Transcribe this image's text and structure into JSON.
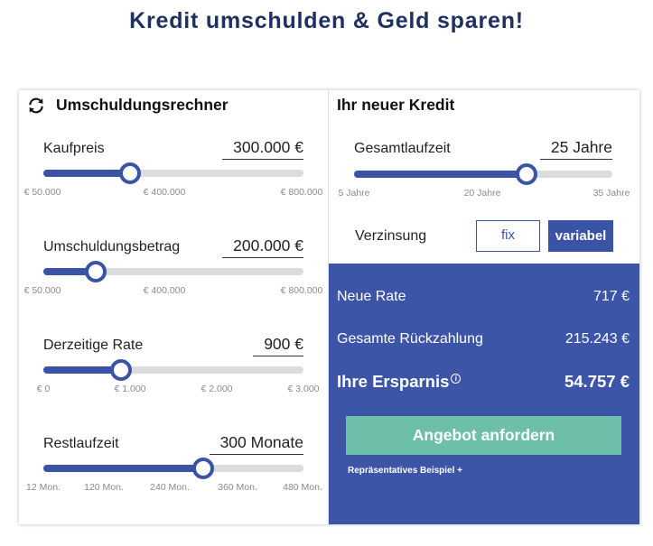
{
  "page": {
    "title": "Kredit umschulden & Geld sparen!"
  },
  "left_panel": {
    "title": "Umschuldungsrechner",
    "icon": "refresh-icon",
    "sliders": [
      {
        "id": "kaufpreis",
        "label": "Kaufpreis",
        "value": "300.000 €",
        "fraction": 0.333,
        "ticks": [
          "€ 50.000",
          "€ 400.000",
          "€ 800.000"
        ]
      },
      {
        "id": "umschuldungsbetrag",
        "label": "Umschuldungsbetrag",
        "value": "200.000 €",
        "fraction": 0.2,
        "ticks": [
          "€ 50.000",
          "€ 400.000",
          "€ 800.000"
        ]
      },
      {
        "id": "derzeitige-rate",
        "label": "Derzeitige Rate",
        "value": "900 €",
        "fraction": 0.3,
        "ticks": [
          "€ 0",
          "€ 1.000",
          "€ 2.000",
          "€ 3.000"
        ]
      },
      {
        "id": "restlaufzeit",
        "label": "Restlaufzeit",
        "value": "300 Monate",
        "fraction": 0.613,
        "ticks": [
          "12 Mon.",
          "120 Mon.",
          "240 Mon.",
          "360 Mon.",
          "480 Mon."
        ]
      }
    ]
  },
  "right_panel": {
    "title": "Ihr neuer Kredit",
    "slider": {
      "id": "gesamtlaufzeit",
      "label": "Gesamtlaufzeit",
      "value": "25 Jahre",
      "fraction": 0.667,
      "ticks": [
        "5 Jahre",
        "20 Jahre",
        "35 Jahre"
      ]
    },
    "verzinsung": {
      "label": "Verzinsung",
      "fix_label": "fix",
      "variabel_label": "variabel",
      "selected": "variabel"
    },
    "results": {
      "neue_rate_label": "Neue Rate",
      "neue_rate_value": "717 €",
      "rueckzahlung_label": "Gesamte Rückzahlung",
      "rueckzahlung_value": "215.243 €",
      "ersparnis_label": "Ihre Ersparnis",
      "ersparnis_value": "54.757 €",
      "info_icon": "info-icon"
    },
    "cta_label": "Angebot anfordern",
    "representative_label": "Repräsentatives Beispiel +"
  },
  "colors": {
    "primary": "#3b53a4",
    "title": "#1f3062",
    "cta": "#6dbfaa",
    "track": "#dcdcdc"
  }
}
